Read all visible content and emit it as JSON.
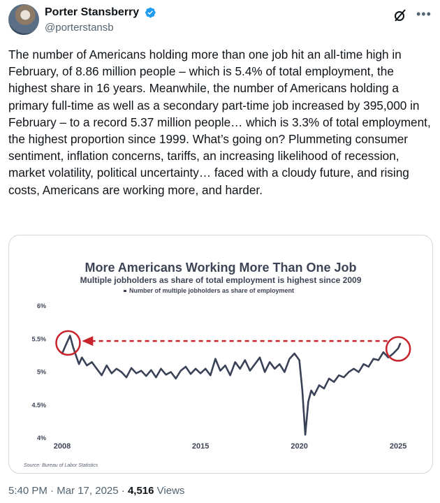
{
  "author": {
    "name": "Porter Stansberry",
    "handle": "@porterstansb",
    "verified": true,
    "verified_color": "#1d9bf0"
  },
  "header_icons": [
    "grok-icon",
    "more-icon"
  ],
  "tweet": {
    "text": "The number of Americans holding more than one job hit an all-time high in February, of 8.86 million people – which is 5.4% of total employment, the highest share in 16 years. Meanwhile, the number of Americans holding a primary full-time as well as a secondary part-time job increased by 395,000 in February – to a record 5.37 million people… which is 3.3% of total employment, the highest proportion since 1999. What’s going on? Plummeting consumer sentiment, inflation concerns, tariffs, an increasing likelihood of recession, market volatility,  political uncertainty… faced with a cloudy future, and rising costs,  Americans are working more, and harder."
  },
  "meta": {
    "time": "5:40 PM",
    "date": "Mar 17, 2025",
    "views": "4,516",
    "views_label": "Views",
    "sep": " · "
  },
  "chart_data": {
    "type": "line",
    "title": "More Americans Working More Than One Job",
    "subtitle": "Multiple jobholders as share of total employment is highest since 2009",
    "legend": [
      "Number of multiple jobholders as share of employment"
    ],
    "legend_position": "top-center",
    "source": "Source: Bureau of Labor Statistics",
    "x_ticks": [
      "2008",
      "2015",
      "2020",
      "2025"
    ],
    "y_ticks": [
      "4%",
      "4.5%",
      "5%",
      "5.5%",
      "6%"
    ],
    "ylim": [
      4.0,
      6.0
    ],
    "xlim": [
      2008.0,
      2025.1
    ],
    "grid": false,
    "line_color": "#3a4257",
    "highlight_color": "#c8242b",
    "series": [
      {
        "name": "Number of multiple jobholders as share of employment",
        "x": [
          2008.0,
          2008.2,
          2008.4,
          2008.55,
          2008.7,
          2008.85,
          2009.0,
          2009.25,
          2009.5,
          2009.75,
          2010.0,
          2010.25,
          2010.5,
          2010.75,
          2011.0,
          2011.25,
          2011.5,
          2011.75,
          2012.0,
          2012.25,
          2012.5,
          2012.75,
          2013.0,
          2013.25,
          2013.5,
          2013.75,
          2014.0,
          2014.25,
          2014.5,
          2014.75,
          2015.0,
          2015.25,
          2015.5,
          2015.75,
          2016.0,
          2016.25,
          2016.5,
          2016.75,
          2017.0,
          2017.25,
          2017.5,
          2017.75,
          2018.0,
          2018.25,
          2018.5,
          2018.75,
          2019.0,
          2019.25,
          2019.5,
          2019.75,
          2020.0,
          2020.15,
          2020.3,
          2020.45,
          2020.6,
          2020.75,
          2021.0,
          2021.25,
          2021.5,
          2021.75,
          2022.0,
          2022.25,
          2022.5,
          2022.75,
          2023.0,
          2023.25,
          2023.5,
          2023.75,
          2024.0,
          2024.25,
          2024.5,
          2024.75,
          2025.0,
          2025.1
        ],
        "y": [
          5.28,
          5.42,
          5.55,
          5.38,
          5.25,
          5.12,
          5.22,
          5.1,
          5.15,
          5.05,
          4.95,
          5.1,
          4.98,
          5.05,
          5.0,
          4.92,
          5.06,
          4.98,
          5.02,
          4.94,
          5.03,
          4.92,
          5.05,
          4.96,
          5.0,
          4.9,
          5.02,
          5.08,
          4.97,
          5.05,
          4.98,
          5.05,
          4.95,
          5.2,
          5.02,
          5.1,
          4.95,
          5.15,
          5.05,
          5.18,
          5.02,
          5.12,
          5.22,
          5.0,
          5.15,
          5.05,
          5.12,
          5.0,
          5.2,
          5.28,
          5.18,
          4.72,
          4.05,
          4.55,
          4.72,
          4.65,
          4.8,
          4.75,
          4.9,
          4.85,
          4.95,
          4.92,
          5.0,
          5.05,
          5.0,
          5.12,
          5.08,
          5.2,
          5.18,
          5.3,
          5.22,
          5.28,
          5.36,
          5.43
        ]
      }
    ],
    "annotations": [
      {
        "type": "circle",
        "label": "",
        "x": 2008.3,
        "y": 5.44
      },
      {
        "type": "circle",
        "label": "",
        "x": 2025.0,
        "y": 5.35
      },
      {
        "type": "arrow",
        "label": "",
        "from_x": 2024.45,
        "to_x": 2009.0,
        "y": 5.47
      }
    ]
  }
}
